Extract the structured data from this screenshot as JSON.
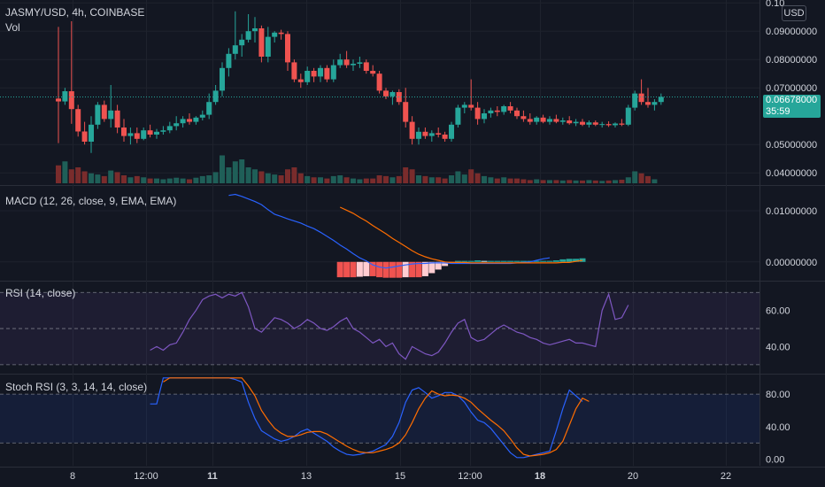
{
  "header": {
    "symbol_line": "JASMY/USD, 4h, COINBASE",
    "vol_label": "Vol",
    "currency_button": "USD"
  },
  "last_price": {
    "value": "0.06678000",
    "countdown": "35:59"
  },
  "colors": {
    "up": "#26a69a",
    "down": "#ef5350",
    "macd": "#2962ff",
    "signal": "#ff6d00",
    "rsi": "#7e57c2",
    "stoch_k": "#2962ff",
    "stoch_d": "#ff6d00",
    "bg": "#131722"
  },
  "chart_data": [
    {
      "type": "candlestick",
      "title": "JASMY/USD, 4h, COINBASE",
      "ylim": [
        0.036,
        0.101
      ],
      "y_ticks": [
        "0.10",
        "0.09000000",
        "0.08000000",
        "0.07000000",
        "0.05000000",
        "0.04000000"
      ],
      "y_tick_values": [
        0.1,
        0.09,
        0.08,
        0.07,
        0.05,
        0.04
      ],
      "x_ticks": [
        "8",
        "12:00",
        "11",
        "13",
        "15",
        "12:00",
        "18",
        "20",
        "22"
      ],
      "x_tick_bold": [
        false,
        false,
        true,
        false,
        false,
        false,
        true,
        false,
        false
      ],
      "candles": [
        [
          0.0662,
          0.0915,
          0.0505,
          0.0652
        ],
        [
          0.0652,
          0.07,
          0.064,
          0.0688
        ],
        [
          0.0688,
          0.0935,
          0.0573,
          0.0625
        ],
        [
          0.0625,
          0.064,
          0.0528,
          0.0546
        ],
        [
          0.0546,
          0.058,
          0.05,
          0.051
        ],
        [
          0.051,
          0.06,
          0.047,
          0.057
        ],
        [
          0.057,
          0.065,
          0.0555,
          0.064
        ],
        [
          0.064,
          0.0655,
          0.058,
          0.059
        ],
        [
          0.059,
          0.071,
          0.056,
          0.062
        ],
        [
          0.062,
          0.064,
          0.054,
          0.056
        ],
        [
          0.056,
          0.059,
          0.051,
          0.053
        ],
        [
          0.053,
          0.056,
          0.05,
          0.054
        ],
        [
          0.054,
          0.056,
          0.0505,
          0.052
        ],
        [
          0.052,
          0.056,
          0.0515,
          0.055
        ],
        [
          0.055,
          0.057,
          0.0525,
          0.0535
        ],
        [
          0.0535,
          0.0555,
          0.052,
          0.0545
        ],
        [
          0.0545,
          0.0565,
          0.0535,
          0.055
        ],
        [
          0.055,
          0.058,
          0.054,
          0.0565
        ],
        [
          0.0565,
          0.06,
          0.055,
          0.0575
        ],
        [
          0.0575,
          0.06,
          0.056,
          0.059
        ],
        [
          0.059,
          0.061,
          0.057,
          0.058
        ],
        [
          0.058,
          0.06,
          0.057,
          0.0595
        ],
        [
          0.0595,
          0.062,
          0.0585,
          0.0605
        ],
        [
          0.0605,
          0.068,
          0.059,
          0.065
        ],
        [
          0.065,
          0.071,
          0.064,
          0.069
        ],
        [
          0.069,
          0.079,
          0.067,
          0.077
        ],
        [
          0.077,
          0.084,
          0.074,
          0.082
        ],
        [
          0.082,
          0.097,
          0.08,
          0.085
        ],
        [
          0.085,
          0.089,
          0.081,
          0.087
        ],
        [
          0.087,
          0.096,
          0.086,
          0.09
        ],
        [
          0.09,
          0.095,
          0.086,
          0.091
        ],
        [
          0.091,
          0.092,
          0.079,
          0.081
        ],
        [
          0.081,
          0.0915,
          0.079,
          0.088
        ],
        [
          0.088,
          0.09,
          0.086,
          0.0895
        ],
        [
          0.0895,
          0.0905,
          0.087,
          0.089
        ],
        [
          0.089,
          0.09,
          0.076,
          0.079
        ],
        [
          0.079,
          0.08,
          0.072,
          0.073
        ],
        [
          0.073,
          0.075,
          0.07,
          0.072
        ],
        [
          0.072,
          0.0775,
          0.071,
          0.076
        ],
        [
          0.076,
          0.077,
          0.072,
          0.074
        ],
        [
          0.074,
          0.078,
          0.072,
          0.077
        ],
        [
          0.077,
          0.078,
          0.072,
          0.073
        ],
        [
          0.073,
          0.08,
          0.072,
          0.078
        ],
        [
          0.078,
          0.082,
          0.077,
          0.08
        ],
        [
          0.08,
          0.083,
          0.077,
          0.078
        ],
        [
          0.078,
          0.08,
          0.076,
          0.0785
        ],
        [
          0.0785,
          0.081,
          0.077,
          0.079
        ],
        [
          0.079,
          0.08,
          0.075,
          0.076
        ],
        [
          0.076,
          0.078,
          0.074,
          0.075
        ],
        [
          0.075,
          0.076,
          0.068,
          0.069
        ],
        [
          0.069,
          0.07,
          0.066,
          0.067
        ],
        [
          0.067,
          0.069,
          0.064,
          0.0685
        ],
        [
          0.0685,
          0.0695,
          0.064,
          0.065
        ],
        [
          0.065,
          0.07,
          0.056,
          0.058
        ],
        [
          0.058,
          0.06,
          0.05,
          0.052
        ],
        [
          0.052,
          0.056,
          0.05,
          0.0545
        ],
        [
          0.0545,
          0.056,
          0.052,
          0.053
        ],
        [
          0.053,
          0.055,
          0.051,
          0.054
        ],
        [
          0.054,
          0.056,
          0.0525,
          0.0535
        ],
        [
          0.0535,
          0.0545,
          0.051,
          0.052
        ],
        [
          0.052,
          0.058,
          0.051,
          0.057
        ],
        [
          0.057,
          0.064,
          0.056,
          0.063
        ],
        [
          0.063,
          0.065,
          0.061,
          0.064
        ],
        [
          0.064,
          0.073,
          0.062,
          0.063
        ],
        [
          0.063,
          0.065,
          0.057,
          0.059
        ],
        [
          0.059,
          0.0625,
          0.0575,
          0.061
        ],
        [
          0.061,
          0.063,
          0.0595,
          0.062
        ],
        [
          0.062,
          0.0635,
          0.06,
          0.0615
        ],
        [
          0.0615,
          0.064,
          0.0605,
          0.0635
        ],
        [
          0.0635,
          0.065,
          0.061,
          0.062
        ],
        [
          0.062,
          0.063,
          0.059,
          0.06
        ],
        [
          0.06,
          0.062,
          0.058,
          0.059
        ],
        [
          0.059,
          0.061,
          0.057,
          0.058
        ],
        [
          0.058,
          0.06,
          0.057,
          0.0595
        ],
        [
          0.0595,
          0.0605,
          0.0575,
          0.058
        ],
        [
          0.058,
          0.06,
          0.057,
          0.059
        ],
        [
          0.059,
          0.0605,
          0.0575,
          0.058
        ],
        [
          0.058,
          0.0595,
          0.057,
          0.0585
        ],
        [
          0.0585,
          0.06,
          0.057,
          0.0575
        ],
        [
          0.0575,
          0.059,
          0.0565,
          0.058
        ],
        [
          0.058,
          0.059,
          0.0565,
          0.057
        ],
        [
          0.057,
          0.0585,
          0.056,
          0.0578
        ],
        [
          0.0578,
          0.0585,
          0.0565,
          0.057
        ],
        [
          0.057,
          0.058,
          0.056,
          0.0572
        ],
        [
          0.0572,
          0.0582,
          0.0562,
          0.0568
        ],
        [
          0.0568,
          0.0578,
          0.056,
          0.0574
        ],
        [
          0.0574,
          0.059,
          0.0565,
          0.057
        ],
        [
          0.057,
          0.064,
          0.0565,
          0.063
        ],
        [
          0.063,
          0.069,
          0.062,
          0.068
        ],
        [
          0.068,
          0.073,
          0.064,
          0.065
        ],
        [
          0.065,
          0.07,
          0.063,
          0.064
        ],
        [
          0.064,
          0.066,
          0.062,
          0.065
        ],
        [
          0.065,
          0.068,
          0.064,
          0.0668
        ]
      ],
      "volumes": [
        0.45,
        0.55,
        0.35,
        0.4,
        0.3,
        0.25,
        0.22,
        0.18,
        0.32,
        0.28,
        0.2,
        0.15,
        0.18,
        0.15,
        0.12,
        0.12,
        0.1,
        0.12,
        0.14,
        0.12,
        0.1,
        0.14,
        0.18,
        0.2,
        0.28,
        0.7,
        0.4,
        0.55,
        0.6,
        0.4,
        0.35,
        0.3,
        0.25,
        0.22,
        0.2,
        0.35,
        0.4,
        0.25,
        0.18,
        0.15,
        0.15,
        0.12,
        0.18,
        0.2,
        0.15,
        0.12,
        0.1,
        0.12,
        0.12,
        0.2,
        0.18,
        0.15,
        0.18,
        0.4,
        0.35,
        0.2,
        0.18,
        0.15,
        0.15,
        0.12,
        0.2,
        0.3,
        0.22,
        0.35,
        0.25,
        0.18,
        0.15,
        0.12,
        0.15,
        0.12,
        0.12,
        0.1,
        0.08,
        0.1,
        0.08,
        0.08,
        0.08,
        0.07,
        0.08,
        0.07,
        0.07,
        0.08,
        0.07,
        0.06,
        0.07,
        0.08,
        0.09,
        0.15,
        0.3,
        0.25,
        0.18,
        0.1
      ]
    },
    {
      "type": "line",
      "title": "MACD (12, 26, close, 9, EMA, EMA)",
      "ylim": [
        -0.0035,
        0.0145
      ],
      "y_ticks": [
        "0.01000000",
        "0.00000000"
      ],
      "y_tick_values": [
        0.01,
        0.0
      ],
      "series": [
        {
          "name": "MACD",
          "start_index": 26,
          "values": [
            0.013,
            0.0132,
            0.0128,
            0.0123,
            0.0118,
            0.0112,
            0.0102,
            0.0093,
            0.0089,
            0.0084,
            0.008,
            0.0076,
            0.007,
            0.0065,
            0.0058,
            0.005,
            0.0042,
            0.0033,
            0.0025,
            0.0016,
            0.0008,
            0.0002,
            -0.0006,
            -0.001,
            -0.0012,
            -0.001,
            -0.0008,
            -0.0006,
            -0.0004,
            -0.0003,
            -0.0003,
            -0.0002,
            -0.0002,
            -0.0002,
            -0.0003,
            -0.0003,
            -0.0003,
            -0.0003,
            -0.0003,
            -0.0003,
            -0.0003,
            -0.0003,
            -0.0003,
            -0.0003,
            -0.0002,
            -0.0001,
            0.0,
            0.0003,
            0.0006,
            0.0008
          ]
        },
        {
          "name": "Signal",
          "start_index": 43,
          "values": [
            0.0107,
            0.0101,
            0.0095,
            0.0087,
            0.008,
            0.0071,
            0.0063,
            0.0055,
            0.0046,
            0.0038,
            0.003,
            0.0022,
            0.0015,
            0.001,
            0.0006,
            0.0003,
            0.0,
            -0.0001,
            -0.0001,
            -0.0001,
            -0.0002,
            -0.0002,
            -0.0002,
            -0.0002,
            -0.0002,
            -0.0002,
            -0.0002,
            -0.0002,
            -0.0002,
            -0.0002,
            -0.0002,
            -0.0002,
            -0.0002,
            -0.0002,
            -0.0001,
            -0.0001,
            0.0001,
            0.0003
          ]
        },
        {
          "name": "Histogram",
          "start_index": 43,
          "values": [
            -0.003,
            -0.003,
            -0.003,
            -0.0029,
            -0.0028,
            -0.0028,
            -0.003,
            -0.0031,
            -0.0031,
            -0.0031,
            -0.003,
            -0.003,
            -0.003,
            -0.0028,
            -0.0022,
            -0.0015,
            -0.0008,
            -0.0003,
            0.0002,
            0.0002,
            0.0002,
            0.0003,
            0.0002,
            0.0002,
            0.0002,
            0.0002,
            0.0002,
            0.0002,
            0.0002,
            0.0002,
            0.0002,
            0.0002,
            0.0002,
            0.0003,
            0.0005,
            0.0006,
            0.0006,
            0.0007
          ]
        }
      ]
    },
    {
      "type": "line",
      "title": "RSI (14, close)",
      "ylim": [
        26,
        76
      ],
      "y_ticks": [
        "60.00",
        "40.00"
      ],
      "y_tick_values": [
        60,
        40
      ],
      "bands": [
        70,
        50,
        30
      ],
      "series": [
        {
          "name": "RSI",
          "start_index": 14,
          "values": [
            38,
            40,
            38,
            41,
            42,
            48,
            55,
            60,
            66,
            68,
            69,
            67,
            69,
            68,
            70,
            62,
            50,
            48,
            52,
            56,
            55,
            53,
            50,
            52,
            55,
            53,
            50,
            49,
            51,
            54,
            56,
            50,
            48,
            45,
            42,
            44,
            40,
            42,
            36,
            33,
            40,
            38,
            36,
            35,
            37,
            42,
            48,
            53,
            55,
            45,
            43,
            44,
            47,
            50,
            52,
            50,
            48,
            47,
            45,
            44,
            42,
            41,
            42,
            43,
            44,
            42,
            42,
            41,
            40,
            60,
            69,
            55,
            56,
            63
          ]
        }
      ]
    },
    {
      "type": "line",
      "title": "Stoch RSI (3, 3, 14, 14, close)",
      "ylim": [
        -8,
        103
      ],
      "y_ticks": [
        "80.00",
        "40.00",
        "0.00"
      ],
      "y_tick_values": [
        80,
        40,
        0
      ],
      "bands": [
        80,
        20
      ],
      "series": [
        {
          "name": "K",
          "start_index": 14,
          "values": [
            68,
            68,
            100,
            100,
            100,
            100,
            100,
            100,
            100,
            100,
            100,
            100,
            100,
            98,
            95,
            70,
            50,
            35,
            30,
            25,
            22,
            24,
            28,
            34,
            37,
            32,
            27,
            22,
            15,
            10,
            6,
            5,
            6,
            8,
            10,
            14,
            18,
            28,
            45,
            70,
            85,
            88,
            82,
            75,
            78,
            82,
            82,
            78,
            70,
            58,
            48,
            45,
            38,
            28,
            18,
            8,
            2,
            2,
            4,
            6,
            8,
            10,
            35,
            62,
            85,
            78,
            71
          ]
        },
        {
          "name": "D",
          "start_index": 16,
          "values": [
            95,
            100,
            100,
            100,
            100,
            100,
            100,
            100,
            100,
            100,
            100,
            100,
            100,
            90,
            78,
            60,
            48,
            38,
            32,
            28,
            28,
            30,
            33,
            34,
            34,
            31,
            26,
            21,
            16,
            12,
            9,
            8,
            8,
            10,
            12,
            15,
            20,
            30,
            45,
            62,
            75,
            84,
            80,
            78,
            79,
            78,
            75,
            70,
            62,
            55,
            48,
            42,
            35,
            25,
            14,
            6,
            4,
            5,
            6,
            8,
            12,
            22,
            42,
            62,
            75,
            71
          ]
        }
      ]
    }
  ]
}
